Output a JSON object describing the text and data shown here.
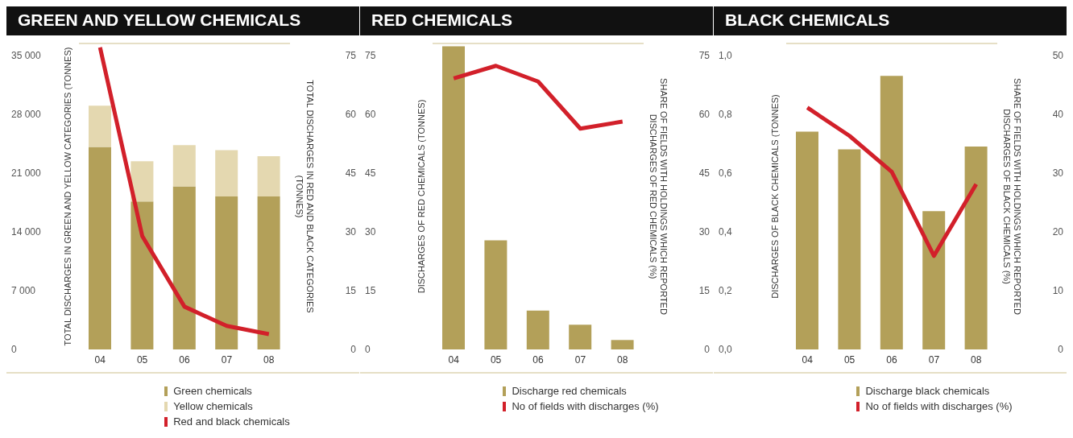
{
  "chart_data": [
    {
      "type": "bar",
      "title": "GREEN AND YELLOW CHEMICALS",
      "ylabel": "TOTAL DISCHARGES IN GREEN AND YELLOW CATEGORIES (TONNES)",
      "y2label": "TOTAL DISCHARGES IN RED AND BLACK CATEGORIES (TONNES)",
      "categories": [
        "04",
        "05",
        "06",
        "07",
        "08"
      ],
      "stacked": true,
      "legend": "bottom",
      "series": [
        {
          "name": "Green chemicals",
          "color": "#b3a059",
          "values": [
            24100,
            17600,
            19400,
            18200,
            18200
          ]
        },
        {
          "name": "Yellow chemicals",
          "color": "#e4d8b0",
          "values": [
            4900,
            4800,
            4900,
            5500,
            4800
          ]
        },
        {
          "name": "Red and black chemicals",
          "type": "line",
          "axis": "y2",
          "color": "#d2202a",
          "values": [
            77,
            28.9,
            10.9,
            6.0,
            3.9
          ]
        }
      ],
      "ylim": [
        0,
        36400
      ],
      "yticks": [
        {
          "value": 0,
          "label": "0"
        },
        {
          "value": 7000,
          "label": "7 000"
        },
        {
          "value": 14000,
          "label": "14 000"
        },
        {
          "value": 21000,
          "label": "21 000"
        },
        {
          "value": 28000,
          "label": "28 000"
        },
        {
          "value": 35000,
          "label": "35 000"
        }
      ],
      "y2lim": [
        0,
        78
      ],
      "y2ticks": [
        0,
        15,
        30,
        45,
        60,
        75
      ]
    },
    {
      "type": "bar",
      "title": "RED CHEMICALS",
      "ylabel": "DISCHARGES OF RED CHEMICALS (TONNES)",
      "y2label": "SHARE OF FIELDS WITH HOLDINGS WHICH REPORTED DISCHARGES OF RED CHEMICALS (%)",
      "categories": [
        "04",
        "05",
        "06",
        "07",
        "08"
      ],
      "legend": "bottom",
      "series": [
        {
          "name": "Discharge red chemicals",
          "color": "#b3a059",
          "values": [
            77.3,
            27.8,
            9.9,
            6.3,
            2.4
          ]
        },
        {
          "name": "No of fields with discharges (%)",
          "type": "line",
          "axis": "y2",
          "color": "#d2202a",
          "values": [
            69.1,
            72.3,
            68.3,
            56.3,
            58.1
          ]
        }
      ],
      "ylim": [
        0,
        78
      ],
      "yticks": [
        0,
        15,
        30,
        45,
        60,
        75
      ],
      "y2lim": [
        0,
        78
      ],
      "y2ticks": [
        0,
        15,
        30,
        45,
        60,
        75
      ]
    },
    {
      "type": "bar",
      "title": "BLACK CHEMICALS",
      "ylabel": "DISCHARGES OF BLACK CHEMICALS (TONNES)",
      "y2label": "SHARE OF FIELDS WITH HOLDINGS WHICH REPORTED DISCHARGES OF BLACK CHEMICALS (%)",
      "categories": [
        "04",
        "05",
        "06",
        "07",
        "08"
      ],
      "legend": "bottom",
      "series": [
        {
          "name": "Discharge black chemicals",
          "color": "#b3a059",
          "values": [
            0.74,
            0.68,
            0.93,
            0.47,
            0.69
          ]
        },
        {
          "name": "No of fields with discharges (%)",
          "type": "line",
          "axis": "y2",
          "color": "#d2202a",
          "values": [
            41.1,
            36.3,
            30.2,
            15.9,
            28.1
          ]
        }
      ],
      "ylim": [
        0,
        1.04
      ],
      "yticks": [
        {
          "value": 0,
          "label": "0,0"
        },
        {
          "value": 0.2,
          "label": "0,2"
        },
        {
          "value": 0.4,
          "label": "0,4"
        },
        {
          "value": 0.6,
          "label": "0,6"
        },
        {
          "value": 0.8,
          "label": "0,8"
        },
        {
          "value": 1,
          "label": "1,0"
        }
      ],
      "y2lim": [
        0,
        52
      ],
      "y2ticks": [
        0,
        10,
        20,
        30,
        40,
        50
      ]
    }
  ]
}
